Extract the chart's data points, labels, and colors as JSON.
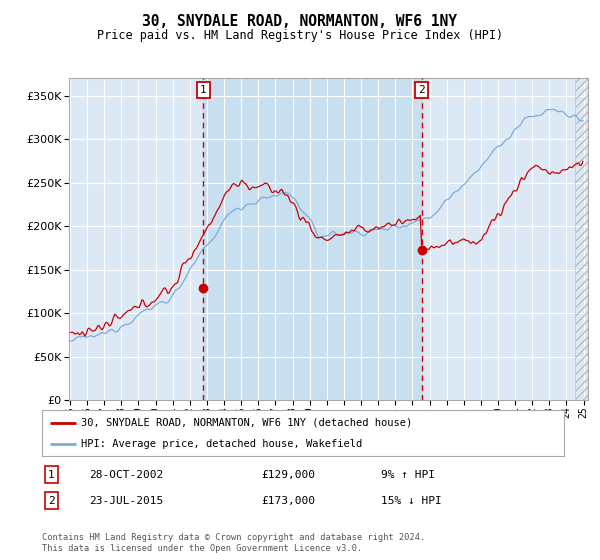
{
  "title": "30, SNYDALE ROAD, NORMANTON, WF6 1NY",
  "subtitle": "Price paid vs. HM Land Registry's House Price Index (HPI)",
  "ylim": [
    0,
    370000
  ],
  "yticks": [
    0,
    50000,
    100000,
    150000,
    200000,
    250000,
    300000,
    350000
  ],
  "sale1_value": 129000,
  "sale1_label": "28-OCT-2002",
  "sale1_pct": "9% ↑ HPI",
  "sale2_value": 173000,
  "sale2_label": "23-JUL-2015",
  "sale2_pct": "15% ↓ HPI",
  "legend_line1": "30, SNYDALE ROAD, NORMANTON, WF6 1NY (detached house)",
  "legend_line2": "HPI: Average price, detached house, Wakefield",
  "footer": "Contains HM Land Registry data © Crown copyright and database right 2024.\nThis data is licensed under the Open Government Licence v3.0.",
  "background_color": "#dce9f5",
  "highlight_color": "#c8dff0",
  "hpi_color": "#7aabdb",
  "price_color": "#cc0000",
  "marker_color": "#cc0000",
  "vline_color": "#cc0000",
  "table_border_color": "#cc0000",
  "grid_color": "#ffffff",
  "figsize": [
    6.0,
    5.6
  ],
  "dpi": 100
}
